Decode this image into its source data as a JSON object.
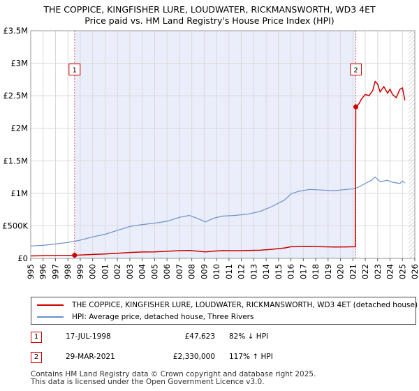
{
  "chart_data": {
    "type": "line",
    "title": "THE COPPICE, KINGFISHER LURE, LOUDWATER, RICKMANSWORTH, WD3 4ET",
    "subtitle": "Price paid vs. HM Land Registry's House Price Index (HPI)",
    "xlabel": "",
    "ylabel": "",
    "xlim": [
      1995,
      2026
    ],
    "ylim": [
      0,
      3500000
    ],
    "y_ticks": [
      {
        "value": 0,
        "label": "£0"
      },
      {
        "value": 500000,
        "label": "£500K"
      },
      {
        "value": 1000000,
        "label": "£1M"
      },
      {
        "value": 1500000,
        "label": "£1.5M"
      },
      {
        "value": 2000000,
        "label": "£2M"
      },
      {
        "value": 2500000,
        "label": "£2.5M"
      },
      {
        "value": 3000000,
        "label": "£3M"
      },
      {
        "value": 3500000,
        "label": "£3.5M"
      }
    ],
    "x_ticks": [
      "1995",
      "1996",
      "1997",
      "1998",
      "1999",
      "2000",
      "2001",
      "2002",
      "2003",
      "2004",
      "2005",
      "2006",
      "2007",
      "2008",
      "2009",
      "2010",
      "2011",
      "2012",
      "2013",
      "2014",
      "2015",
      "2016",
      "2017",
      "2018",
      "2019",
      "2020",
      "2021",
      "2022",
      "2023",
      "2024",
      "2025",
      "2026"
    ],
    "grid": true,
    "shaded_period": [
      1998.54,
      2021.24
    ],
    "hatched_from": 2025.5,
    "series": [
      {
        "name": "THE COPPICE, KINGFISHER LURE, LOUDWATER, RICKMANSWORTH, WD3 4ET (detached house)",
        "color": "#cc0000",
        "points": [
          [
            1995.0,
            38000
          ],
          [
            1996.0,
            40000
          ],
          [
            1997.0,
            43000
          ],
          [
            1998.0,
            46000
          ],
          [
            1998.54,
            47623
          ],
          [
            1999.0,
            50000
          ],
          [
            2000.0,
            60000
          ],
          [
            2001.0,
            68000
          ],
          [
            2002.0,
            78000
          ],
          [
            2003.0,
            90000
          ],
          [
            2004.0,
            98000
          ],
          [
            2005.0,
            100000
          ],
          [
            2006.0,
            108000
          ],
          [
            2007.0,
            118000
          ],
          [
            2007.8,
            120000
          ],
          [
            2008.5,
            110000
          ],
          [
            2009.1,
            100000
          ],
          [
            2009.8,
            112000
          ],
          [
            2010.5,
            118000
          ],
          [
            2011.5,
            117000
          ],
          [
            2012.5,
            120000
          ],
          [
            2013.5,
            125000
          ],
          [
            2014.5,
            140000
          ],
          [
            2015.5,
            160000
          ],
          [
            2016.0,
            178000
          ],
          [
            2016.6,
            180000
          ],
          [
            2017.5,
            182000
          ],
          [
            2018.5,
            178000
          ],
          [
            2019.5,
            175000
          ],
          [
            2020.5,
            176000
          ],
          [
            2021.2,
            178000
          ],
          [
            2021.24,
            2330000
          ],
          [
            2021.5,
            2380000
          ],
          [
            2021.7,
            2450000
          ],
          [
            2022.0,
            2520000
          ],
          [
            2022.3,
            2500000
          ],
          [
            2022.6,
            2580000
          ],
          [
            2022.8,
            2720000
          ],
          [
            2023.0,
            2680000
          ],
          [
            2023.2,
            2560000
          ],
          [
            2023.5,
            2640000
          ],
          [
            2023.8,
            2540000
          ],
          [
            2024.0,
            2600000
          ],
          [
            2024.2,
            2520000
          ],
          [
            2024.5,
            2470000
          ],
          [
            2024.8,
            2600000
          ],
          [
            2025.0,
            2620000
          ],
          [
            2025.2,
            2430000
          ]
        ]
      },
      {
        "name": "HPI: Average price, detached house, Three Rivers",
        "color": "#6a8fc8",
        "points": [
          [
            1995.0,
            190000
          ],
          [
            1996.0,
            200000
          ],
          [
            1997.0,
            220000
          ],
          [
            1998.0,
            245000
          ],
          [
            1998.54,
            262000
          ],
          [
            1999.0,
            280000
          ],
          [
            2000.0,
            330000
          ],
          [
            2001.0,
            370000
          ],
          [
            2002.0,
            430000
          ],
          [
            2003.0,
            490000
          ],
          [
            2004.0,
            520000
          ],
          [
            2005.0,
            540000
          ],
          [
            2006.0,
            570000
          ],
          [
            2007.0,
            630000
          ],
          [
            2007.8,
            660000
          ],
          [
            2008.5,
            610000
          ],
          [
            2009.1,
            560000
          ],
          [
            2009.8,
            620000
          ],
          [
            2010.5,
            650000
          ],
          [
            2011.5,
            660000
          ],
          [
            2012.5,
            680000
          ],
          [
            2013.5,
            720000
          ],
          [
            2014.5,
            800000
          ],
          [
            2015.5,
            900000
          ],
          [
            2016.0,
            990000
          ],
          [
            2016.6,
            1030000
          ],
          [
            2017.5,
            1060000
          ],
          [
            2018.5,
            1050000
          ],
          [
            2019.5,
            1040000
          ],
          [
            2020.5,
            1060000
          ],
          [
            2021.2,
            1072000
          ],
          [
            2021.5,
            1100000
          ],
          [
            2022.0,
            1150000
          ],
          [
            2022.5,
            1200000
          ],
          [
            2022.8,
            1250000
          ],
          [
            2023.2,
            1180000
          ],
          [
            2023.8,
            1200000
          ],
          [
            2024.2,
            1170000
          ],
          [
            2024.8,
            1150000
          ],
          [
            2025.0,
            1190000
          ],
          [
            2025.2,
            1160000
          ]
        ]
      }
    ],
    "sales": [
      {
        "label": "1",
        "x": 1998.54,
        "y": 47623
      },
      {
        "label": "2",
        "x": 2021.24,
        "y": 2330000
      }
    ],
    "marker_box_values": [
      3000000,
      3000000
    ]
  },
  "legend": {
    "items": [
      {
        "label": "THE COPPICE, KINGFISHER LURE, LOUDWATER, RICKMANSWORTH, WD3 4ET (detached house)",
        "color": "#cc0000"
      },
      {
        "label": "HPI: Average price, detached house, Three Rivers",
        "color": "#6a8fc8"
      }
    ]
  },
  "transactions": [
    {
      "num": "1",
      "date": "17-JUL-1998",
      "price": "£47,623",
      "hpi": "82% ↓ HPI"
    },
    {
      "num": "2",
      "date": "29-MAR-2021",
      "price": "£2,330,000",
      "hpi": "117% ↑ HPI"
    }
  ],
  "footer": {
    "line1": "Contains HM Land Registry data © Crown copyright and database right 2025.",
    "line2": "This data is licensed under the Open Government Licence v3.0."
  }
}
